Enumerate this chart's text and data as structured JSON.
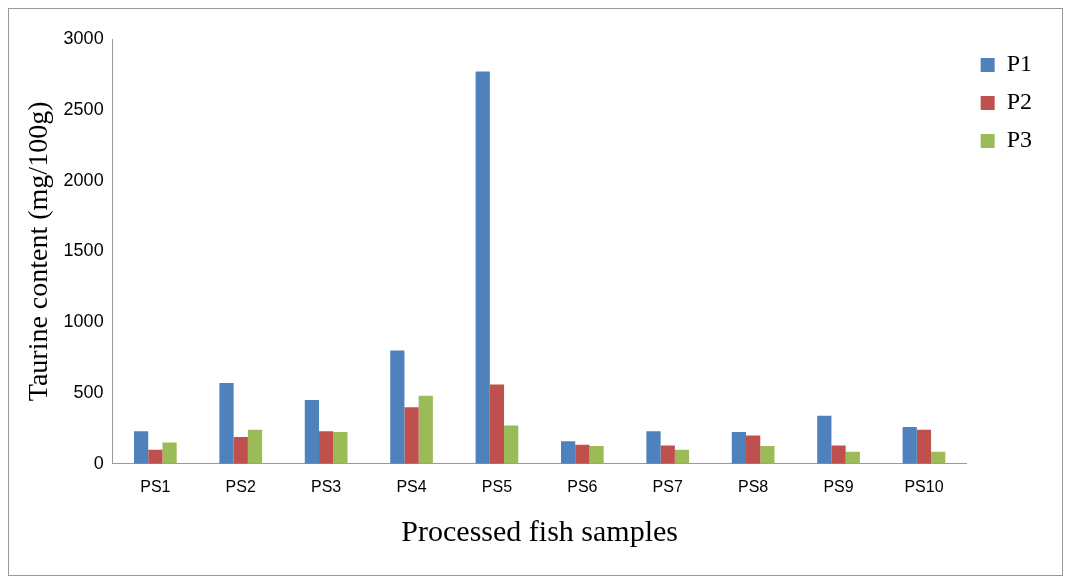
{
  "chart_data": {
    "type": "bar",
    "xlabel": "Processed fish samples",
    "ylabel": "Taurine content (mg/100g)",
    "categories": [
      "PS1",
      "PS2",
      "PS3",
      "PS4",
      "PS5",
      "PS6",
      "PS7",
      "PS8",
      "PS9",
      "PS10"
    ],
    "series": [
      {
        "name": "P1",
        "color": "#4f81bd",
        "values": [
          230,
          570,
          450,
          800,
          2770,
          160,
          230,
          225,
          340,
          260
        ]
      },
      {
        "name": "P2",
        "color": "#c0504d",
        "values": [
          100,
          190,
          230,
          400,
          560,
          135,
          130,
          200,
          130,
          240
        ]
      },
      {
        "name": "P3",
        "color": "#9bbb59",
        "values": [
          150,
          240,
          225,
          480,
          270,
          125,
          100,
          125,
          85,
          85
        ]
      }
    ],
    "ylim": [
      0,
      3000
    ],
    "yticks": [
      0,
      500,
      1000,
      1500,
      2000,
      2500,
      3000
    ],
    "grid": false,
    "legend": "top right"
  }
}
